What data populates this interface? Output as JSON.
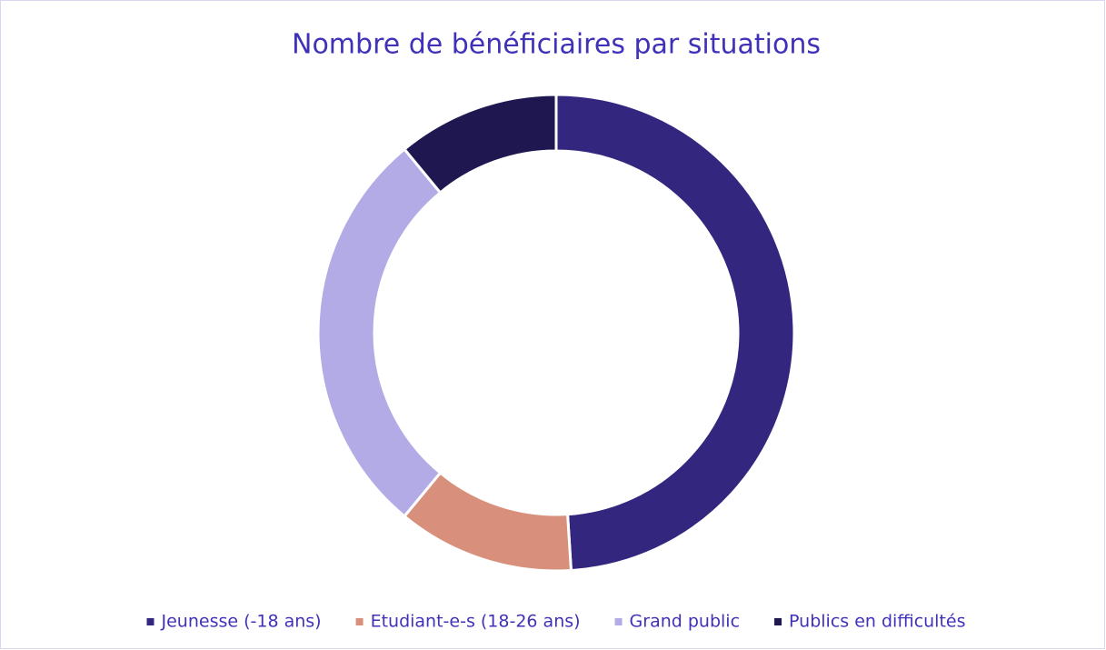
{
  "chart_data": {
    "type": "donut",
    "title": "Nombre de bénéficiaires par situations",
    "categories": [
      "Jeunesse (-18 ans)",
      "Etudiant-e-s (18-26 ans)",
      "Grand public",
      "Publics en difficultés"
    ],
    "values": [
      49,
      12,
      28,
      11
    ],
    "colors": [
      "#33267f",
      "#d88f7b",
      "#b3abe6",
      "#1f1850"
    ],
    "legend": "bottom"
  }
}
